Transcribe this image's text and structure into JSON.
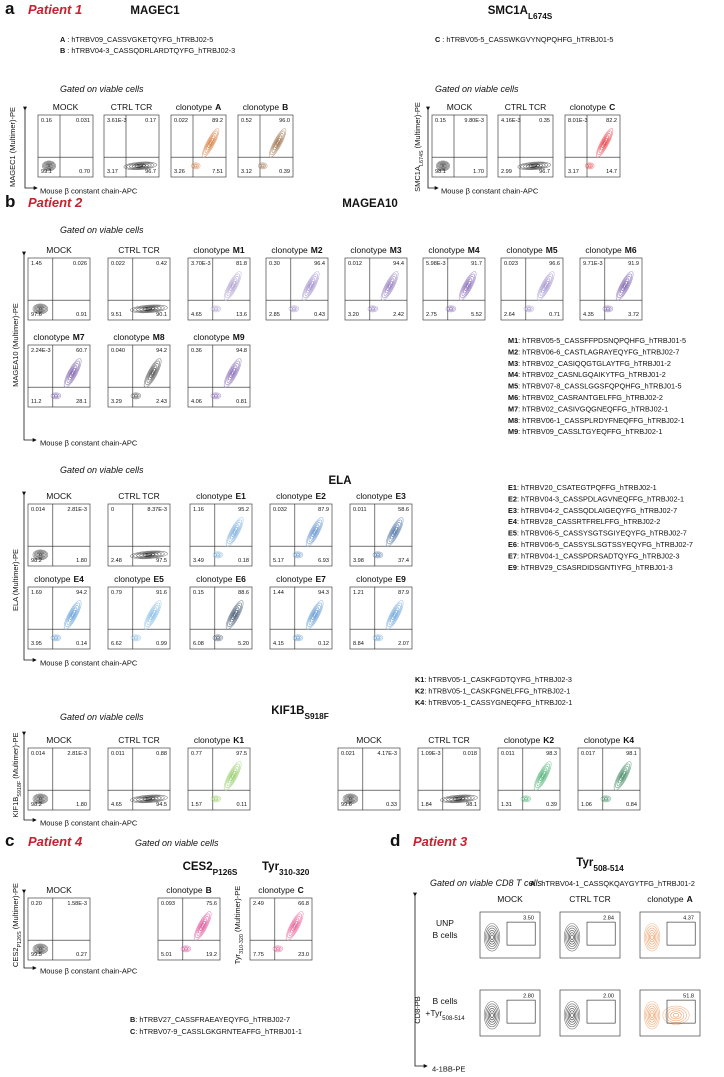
{
  "panels": [
    {
      "letter": "a",
      "patient": "Patient 1",
      "blocks": [
        {
          "title": {
            "name": "MAGEC1"
          },
          "gate": "Gated on viable cells",
          "y_label": {
            "name": "MAGEC1",
            "suffix": " (Multimer)-PE"
          },
          "x_label": "Mouse β constant chain-APC",
          "legend": [
            {
              "key": "A",
              "text": " : hTRBV09_CASSVGKETQYFG_hTRBJ02-5"
            },
            {
              "key": "B",
              "text": " : hTRBV04-3_CASSQDRLARDTQYFG_hTRBJ02-3"
            }
          ],
          "plots": [
            {
              "label": "MOCK",
              "q": [
                "0.16",
                "0.031",
                "99.1",
                "0.70"
              ],
              "color": "#111111"
            },
            {
              "label": "CTRL TCR",
              "q": [
                "3.61E-3",
                "0.17",
                "3.17",
                "96.7"
              ],
              "color": "#111111"
            },
            {
              "label": "clonotype",
              "id": "A",
              "q": [
                "0.022",
                "89.2",
                "3.26",
                "7.51"
              ],
              "color": "#d2691e"
            },
            {
              "label": "clonotype",
              "id": "B",
              "q": [
                "0.52",
                "96.0",
                "3.12",
                "0.39"
              ],
              "color": "#8b5a2b"
            }
          ]
        },
        {
          "title": {
            "name": "SMC1A",
            "sub": "L674S"
          },
          "gate": "Gated on viable cells",
          "y_label": {
            "name": "SMC1A",
            "sub": "L674S",
            "suffix": " (Multimer)-PE"
          },
          "x_label": "Mouse β constant chain-APC",
          "legend": [
            {
              "key": "C",
              "text": " : hTRBV05-5_CASSWKGVYNQPQHFG_hTRBJ01-5"
            }
          ],
          "plots": [
            {
              "label": "MOCK",
              "q": [
                "0.15",
                "9.80E-3",
                "98.1",
                "1.70"
              ],
              "color": "#111111"
            },
            {
              "label": "CTRL TCR",
              "q": [
                "4.16E-3",
                "0.35",
                "2.99",
                "96.7"
              ],
              "color": "#111111"
            },
            {
              "label": "clonotype",
              "id": "C",
              "q": [
                "8.01E-3",
                "82.2",
                "3.17",
                "14.7"
              ],
              "color": "#e8212b"
            }
          ]
        }
      ]
    },
    {
      "letter": "b",
      "patient": "Patient 2",
      "blocks": [
        {
          "title": {
            "name": "MAGEA10"
          },
          "gate": "Gated on viable cells",
          "y_label": {
            "name": "MAGEA10",
            "suffix": " (Multimer)-PE"
          },
          "x_label": "Mouse β constant chain-APC",
          "legend": [
            {
              "key": "M1",
              "text": ": hTRBV05-5_CASSFFPDSNQPQHFG_hTRBJ01-5"
            },
            {
              "key": "M2",
              "text": ": hTRBV06-6_CASTLAGRAYEQYFG_hTRBJ02-7"
            },
            {
              "key": "M3",
              "text": ": hTRBV02_CASIQQGTGLAYTFG_hTRBJ01-2"
            },
            {
              "key": "M4",
              "text": ": hTRBV02_CASNLGQAIKYTFG_hTRBJ01-2"
            },
            {
              "key": "M5",
              "text": ": hTRBV07-8_CASSLGGSFQPQHFG_hTRBJ01-5"
            },
            {
              "key": "M6",
              "text": ": hTRBV02_CASRANTGELFFG_hTRBJ02-2"
            },
            {
              "key": "M7",
              "text": ": hTRBV02_CASIVGQGNEQFFG_hTRBJ02-1"
            },
            {
              "key": "M8",
              "text": ": hTRBV06-1_CASSPLRDYFNEQFFG_hTRBJ02-1"
            },
            {
              "key": "M9",
              "text": ": hTRBV09_CASSLTGYEQFFG_hTRBJ02-1"
            }
          ],
          "plots": [
            {
              "label": "MOCK",
              "q": [
                "1.45",
                "0.026",
                "97.6",
                "0.91"
              ],
              "color": "#111111"
            },
            {
              "label": "CTRL TCR",
              "q": [
                "0.022",
                "0.42",
                "9.51",
                "90.1"
              ],
              "color": "#111111"
            },
            {
              "label": "clonotype",
              "id": "M1",
              "q": [
                "3.70E-3",
                "81.8",
                "4.65",
                "13.6"
              ],
              "color": "#9d8ac7"
            },
            {
              "label": "clonotype",
              "id": "M2",
              "q": [
                "0.30",
                "96.4",
                "2.85",
                "0.43"
              ],
              "color": "#8b74c0"
            },
            {
              "label": "clonotype",
              "id": "M3",
              "q": [
                "0.012",
                "94.4",
                "3.20",
                "2.42"
              ],
              "color": "#7a5bb0"
            },
            {
              "label": "clonotype",
              "id": "M4",
              "q": [
                "5.98E-3",
                "91.7",
                "2.75",
                "5.52"
              ],
              "color": "#6a45a6"
            },
            {
              "label": "clonotype",
              "id": "M5",
              "q": [
                "0.023",
                "96.6",
                "2.64",
                "0.71"
              ],
              "color": "#8d78c4"
            },
            {
              "label": "clonotype",
              "id": "M6",
              "q": [
                "9.71E-3",
                "91.9",
                "4.35",
                "3.72"
              ],
              "color": "#5e3a9e"
            },
            {
              "label": "clonotype",
              "id": "M7",
              "q": [
                "2.24E-3",
                "60.7",
                "11.2",
                "28.1"
              ],
              "color": "#5b3a96"
            },
            {
              "label": "clonotype",
              "id": "M8",
              "q": [
                "0.040",
                "94.2",
                "3.29",
                "2.43"
              ],
              "color": "#222222"
            },
            {
              "label": "clonotype",
              "id": "M9",
              "q": [
                "0.36",
                "94.8",
                "4.06",
                "0.81"
              ],
              "color": "#6a45a6"
            }
          ]
        },
        {
          "title": {
            "name": "ELA"
          },
          "gate": "Gated on viable cells",
          "y_label": {
            "name": "ELA",
            "suffix": " (Multimer)-PE"
          },
          "x_label": "Mouse β constant chain-APC",
          "legend": [
            {
              "key": "E1",
              "text": ": hTRBV20_CSATEGTPQFFG_hTRBJ02-1"
            },
            {
              "key": "E2",
              "text": ": hTRBV04-3_CASSPDLAGVNEQFFG_hTRBJ02-1"
            },
            {
              "key": "E3",
              "text": ": hTRBV04-2_CASSQDLAIGEQYFG_hTRBJ02-7"
            },
            {
              "key": "E4",
              "text": ": hTRBV28_CASSRTFRELFFG_hTRBJ02-2"
            },
            {
              "key": "E5",
              "text": ": hTRBV06-5_CASSYSGTSGIYEQYFG_hTRBJ02-7"
            },
            {
              "key": "E6",
              "text": ": hTRBV06-5_CASSYSLSGTSSYEQYFG_hTRBJ02-7"
            },
            {
              "key": "E7",
              "text": ": hTRBV04-1_CASSPDRSADTQYFG_hTRBJ02-3"
            },
            {
              "key": "E9",
              "text": ": hTRBV29_CSASRDIDSGNTIYFG_hTRBJ01-3"
            }
          ],
          "plots": [
            {
              "label": "MOCK",
              "q": [
                "0.014",
                "2.81E-3",
                "98.2",
                "1.80"
              ],
              "color": "#111111"
            },
            {
              "label": "CTRL TCR",
              "q": [
                "0",
                "8.37E-3",
                "2.48",
                "97.5"
              ],
              "color": "#111111"
            },
            {
              "label": "clonotype",
              "id": "E1",
              "q": [
                "1.16",
                "95.2",
                "3.49",
                "0.18"
              ],
              "color": "#5b9bd5"
            },
            {
              "label": "clonotype",
              "id": "E2",
              "q": [
                "0.032",
                "87.9",
                "5.17",
                "6.93"
              ],
              "color": "#3a78c2"
            },
            {
              "label": "clonotype",
              "id": "E3",
              "q": [
                "0.011",
                "58.6",
                "3.98",
                "37.4"
              ],
              "color": "#1f4f8f"
            },
            {
              "label": "clonotype",
              "id": "E4",
              "q": [
                "1.69",
                "94.2",
                "3.95",
                "0.14"
              ],
              "color": "#3f87d0"
            },
            {
              "label": "clonotype",
              "id": "E5",
              "q": [
                "0.79",
                "91.6",
                "6.62",
                "0.99"
              ],
              "color": "#6aaee0"
            },
            {
              "label": "clonotype",
              "id": "E6",
              "q": [
                "0.15",
                "88.6",
                "6.08",
                "5.20"
              ],
              "color": "#102a4a"
            },
            {
              "label": "clonotype",
              "id": "E7",
              "q": [
                "1.44",
                "94.3",
                "4.15",
                "0.12"
              ],
              "color": "#3a7fc8"
            },
            {
              "label": "clonotype",
              "id": "E9",
              "q": [
                "1.21",
                "87.9",
                "8.84",
                "2.07"
              ],
              "color": "#4a8fd0"
            }
          ]
        },
        {
          "title": {
            "name": "KIF1B",
            "sub": "S918F"
          },
          "gate": "Gated on viable cells",
          "y_label": {
            "name": "KIF1B",
            "sub": "S918F",
            "suffix": " (Multimer)-PE"
          },
          "x_label": "Mouse β constant chain-APC",
          "legend": [
            {
              "key": "K1",
              "text": ": hTRBV05-1_CASKFGDTQYFG_hTRBJ02-3"
            },
            {
              "key": "K2",
              "text": ": hTRBV05-1_CASKFGNELFFG_hTRBJ02-1"
            },
            {
              "key": "K4",
              "text": ": hTRBV05-1_CASSYGNEQFFG_hTRBJ02-1"
            }
          ],
          "plots": [
            {
              "label": "MOCK",
              "q": [
                "0.014",
                "2.81E-3",
                "98.2",
                "1.80"
              ],
              "color": "#111111"
            },
            {
              "label": "CTRL TCR",
              "q": [
                "0.011",
                "0.88",
                "4.65",
                "94.5"
              ],
              "color": "#111111"
            },
            {
              "label": "clonotype",
              "id": "K1",
              "q": [
                "0.77",
                "97.5",
                "1.57",
                "0.11"
              ],
              "color": "#7ac143"
            },
            {
              "label": "MOCK",
              "q": [
                "0.021",
                "4.17E-3",
                "99.6",
                "0.33"
              ],
              "color": "#111111"
            },
            {
              "label": "CTRL TCR",
              "q": [
                "1.09E-3",
                "0.018",
                "1.84",
                "98.1"
              ],
              "color": "#111111"
            },
            {
              "label": "clonotype",
              "id": "K2",
              "q": [
                "0.011",
                "98.3",
                "1.31",
                "0.39"
              ],
              "color": "#1f9e50"
            },
            {
              "label": "clonotype",
              "id": "K4",
              "q": [
                "0.017",
                "98.1",
                "1.06",
                "0.84"
              ],
              "color": "#106b3a"
            }
          ]
        }
      ]
    },
    {
      "letter": "c",
      "patient": "Patient 4",
      "gate": "Gated on viable cells",
      "blocks": [
        {
          "title": {
            "name": "CES2",
            "sub": "P126S"
          },
          "y_label": {
            "name": "CES2",
            "sub": "P126S",
            "suffix": " (Multimer)-PE"
          },
          "x_label": "Mouse β constant chain-APC",
          "legend": [
            {
              "key": "B",
              "text": ": hTRBV27_CASSFRAEAYEQYFG_hTRBJ02-7"
            },
            {
              "key": "C",
              "text": ": hTRBV07-9_CASSLGKGRNTEAFFG_hTRBJ01-1"
            }
          ],
          "plots": [
            {
              "label": "MOCK",
              "q": [
                "0.20",
                "1.58E-3",
                "99.5",
                "0.27"
              ],
              "color": "#111111"
            },
            {
              "label": "clonotype",
              "id": "B",
              "q": [
                "0.093",
                "75.6",
                "5.01",
                "19.2"
              ],
              "color": "#d6287f"
            }
          ]
        },
        {
          "title": {
            "name": "Tyr",
            "sub": "310-320"
          },
          "y_label": {
            "name": "Tyr",
            "sub": "310-320",
            "suffix": " (Multimer)-PE"
          },
          "plots": [
            {
              "label": "clonotype",
              "id": "C",
              "q": [
                "2.49",
                "66.8",
                "7.75",
                "23.0"
              ],
              "color": "#e5337a"
            }
          ]
        }
      ]
    },
    {
      "letter": "d",
      "patient": "Patient 3",
      "title": {
        "name": "Tyr",
        "sub": "508-514"
      },
      "gate": "Gated on viable CD8 T cells",
      "legend": [
        {
          "key": "A",
          "text": " : hTRBV04-1_CASSQKQAYGYTFG_hTRBJ01-2"
        }
      ],
      "columns": [
        {
          "label": "MOCK",
          "color": "#111111"
        },
        {
          "label": "CTRL TCR",
          "color": "#111111"
        },
        {
          "label": "clonotype",
          "id": "A",
          "color": "#e8823a"
        }
      ],
      "rows": [
        {
          "lines": [
            "UNP",
            "B cells"
          ],
          "values": [
            "3.50",
            "2.84",
            "4.37"
          ]
        },
        {
          "lines": [
            "B cells",
            "+Tyr"
          ],
          "sub": "508-514",
          "values": [
            "2.80",
            "2.00",
            "51.8"
          ]
        }
      ],
      "y_label": "CD8-PB",
      "x_label": "4-1BB-PE"
    }
  ]
}
